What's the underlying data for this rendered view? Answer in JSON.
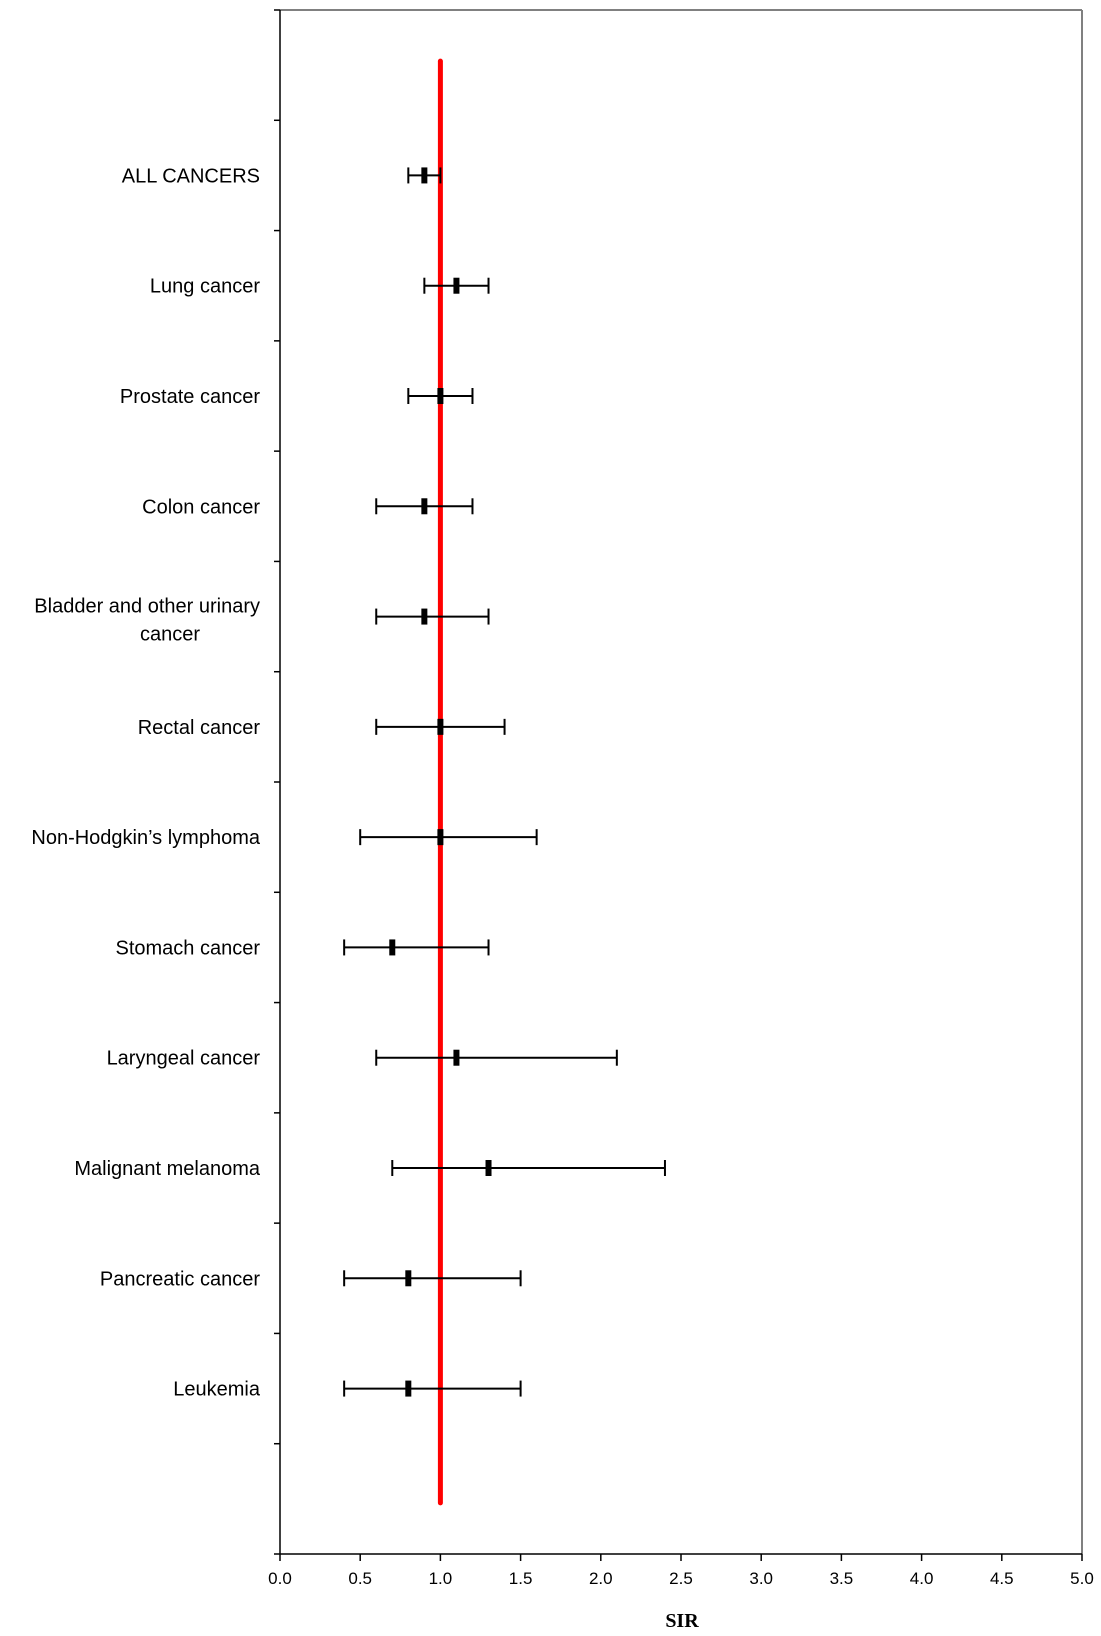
{
  "chart_data": {
    "type": "forest",
    "title": "",
    "xlabel": "SIR",
    "ylabel": "",
    "xlim": [
      0,
      5
    ],
    "x_ticks": [
      0.0,
      0.5,
      1.0,
      1.5,
      2.0,
      2.5,
      3.0,
      3.5,
      4.0,
      4.5,
      5.0
    ],
    "x_tick_labels": [
      "0.0",
      "0.5",
      "1.0",
      "1.5",
      "2.0",
      "2.5",
      "3.0",
      "3.5",
      "4.0",
      "4.5",
      "5.0"
    ],
    "reference_line": {
      "x": 1.0,
      "color": "#ff0000"
    },
    "grid": false,
    "categories": [
      {
        "label": [
          "ALL CANCERS"
        ],
        "sir": 0.9,
        "ci_low": 0.8,
        "ci_high": 1.0
      },
      {
        "label": [
          "Lung cancer"
        ],
        "sir": 1.1,
        "ci_low": 0.9,
        "ci_high": 1.3
      },
      {
        "label": [
          "Prostate cancer"
        ],
        "sir": 1.0,
        "ci_low": 0.8,
        "ci_high": 1.2
      },
      {
        "label": [
          "Colon cancer"
        ],
        "sir": 0.9,
        "ci_low": 0.6,
        "ci_high": 1.2
      },
      {
        "label": [
          "Bladder and other urinary",
          "cancer"
        ],
        "sir": 0.9,
        "ci_low": 0.6,
        "ci_high": 1.3
      },
      {
        "label": [
          "Rectal cancer"
        ],
        "sir": 1.0,
        "ci_low": 0.6,
        "ci_high": 1.4
      },
      {
        "label": [
          "Non-Hodgkin’s lymphoma"
        ],
        "sir": 1.0,
        "ci_low": 0.5,
        "ci_high": 1.6
      },
      {
        "label": [
          "Stomach cancer"
        ],
        "sir": 0.7,
        "ci_low": 0.4,
        "ci_high": 1.3
      },
      {
        "label": [
          "Laryngeal cancer"
        ],
        "sir": 1.1,
        "ci_low": 0.6,
        "ci_high": 2.1
      },
      {
        "label": [
          "Malignant melanoma"
        ],
        "sir": 1.3,
        "ci_low": 0.7,
        "ci_high": 2.4
      },
      {
        "label": [
          "Pancreatic cancer"
        ],
        "sir": 0.8,
        "ci_low": 0.4,
        "ci_high": 1.5
      },
      {
        "label": [
          "Leukemia"
        ],
        "sir": 0.8,
        "ci_low": 0.4,
        "ci_high": 1.5
      }
    ]
  }
}
